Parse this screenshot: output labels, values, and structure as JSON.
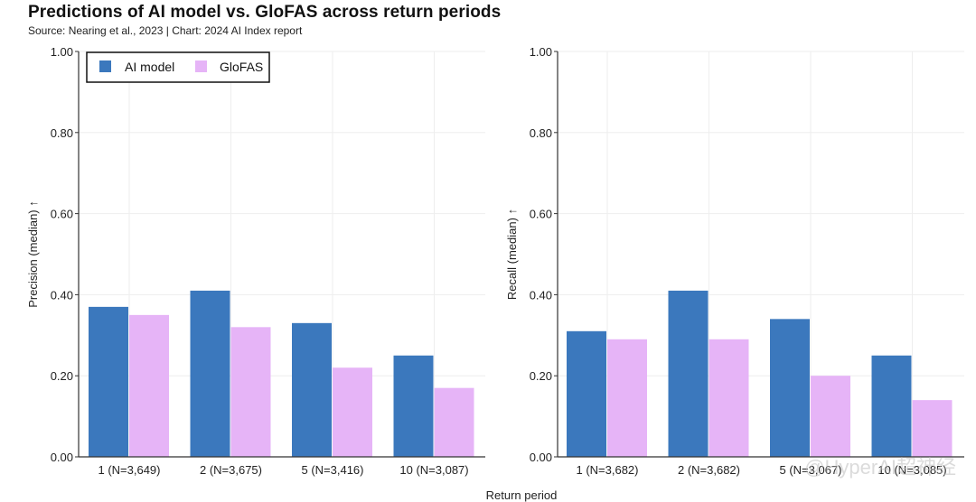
{
  "title": "Predictions of AI model vs. GloFAS across return periods",
  "subtitle": "Source: Nearing et al., 2023 | Chart: 2024 AI Index report",
  "shared_xlabel": "Return period",
  "watermark": "@HyperAI超神经",
  "colors": {
    "ai_model": "#3b78bd",
    "glofas": "#e6b4f7",
    "grid": "#eeeeee",
    "axis": "#333333"
  },
  "chart_data": [
    {
      "type": "bar",
      "ylabel": "Precision (median) ↑",
      "ylim": [
        0,
        1
      ],
      "yticks": [
        "0.00",
        "0.20",
        "0.40",
        "0.60",
        "0.80",
        "1.00"
      ],
      "categories": [
        "1 (N=3,649)",
        "2 (N=3,675)",
        "5 (N=3,416)",
        "10 (N=3,087)"
      ],
      "series": [
        {
          "name": "AI model",
          "values": [
            0.37,
            0.41,
            0.33,
            0.25
          ]
        },
        {
          "name": "GloFAS",
          "values": [
            0.35,
            0.32,
            0.22,
            0.17
          ]
        }
      ],
      "legend": "top-left",
      "grid": true
    },
    {
      "type": "bar",
      "ylabel": "Recall (median) ↑",
      "ylim": [
        0,
        1
      ],
      "yticks": [
        "0.00",
        "0.20",
        "0.40",
        "0.60",
        "0.80",
        "1.00"
      ],
      "categories": [
        "1 (N=3,682)",
        "2 (N=3,682)",
        "5 (N=3,067)",
        "10 (N=3,085)"
      ],
      "series": [
        {
          "name": "AI model",
          "values": [
            0.31,
            0.41,
            0.34,
            0.25
          ]
        },
        {
          "name": "GloFAS",
          "values": [
            0.29,
            0.29,
            0.2,
            0.14
          ]
        }
      ],
      "grid": true
    }
  ]
}
